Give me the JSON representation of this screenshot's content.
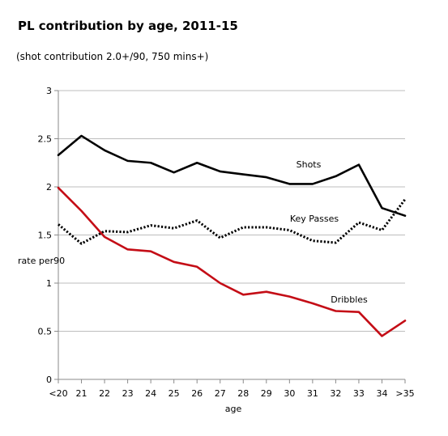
{
  "chart_data": {
    "type": "line",
    "title": "PL contribution by age, 2011-15",
    "subtitle": "(shot contribution 2.0+/90, 750 mins+)",
    "xlabel": "age",
    "ylabel": "rate per90",
    "categories": [
      "<20",
      "21",
      "22",
      "23",
      "24",
      "25",
      "26",
      "27",
      "28",
      "29",
      "30",
      "31",
      "32",
      "33",
      "34",
      ">35"
    ],
    "ylim": [
      0,
      3
    ],
    "yticks": [
      "0",
      "0.5",
      "1",
      "1.5",
      "2",
      "2.5",
      "3"
    ],
    "grid": true,
    "series": [
      {
        "name": "Shots",
        "color": "#000000",
        "style": "solid",
        "values": [
          2.33,
          2.53,
          2.38,
          2.27,
          2.25,
          2.15,
          2.25,
          2.16,
          2.13,
          2.1,
          2.03,
          2.03,
          2.11,
          2.23,
          1.78,
          1.7
        ]
      },
      {
        "name": "Key Passes",
        "color": "#000000",
        "style": "dotted",
        "values": [
          1.61,
          1.41,
          1.54,
          1.53,
          1.6,
          1.57,
          1.65,
          1.47,
          1.58,
          1.58,
          1.55,
          1.44,
          1.42,
          1.63,
          1.55,
          1.87
        ]
      },
      {
        "name": "Dribbles",
        "color": "#c40d16",
        "style": "solid",
        "values": [
          1.99,
          1.75,
          1.48,
          1.35,
          1.33,
          1.22,
          1.17,
          1.0,
          0.88,
          0.91,
          0.86,
          0.79,
          0.71,
          0.7,
          0.45,
          0.61
        ]
      }
    ]
  }
}
